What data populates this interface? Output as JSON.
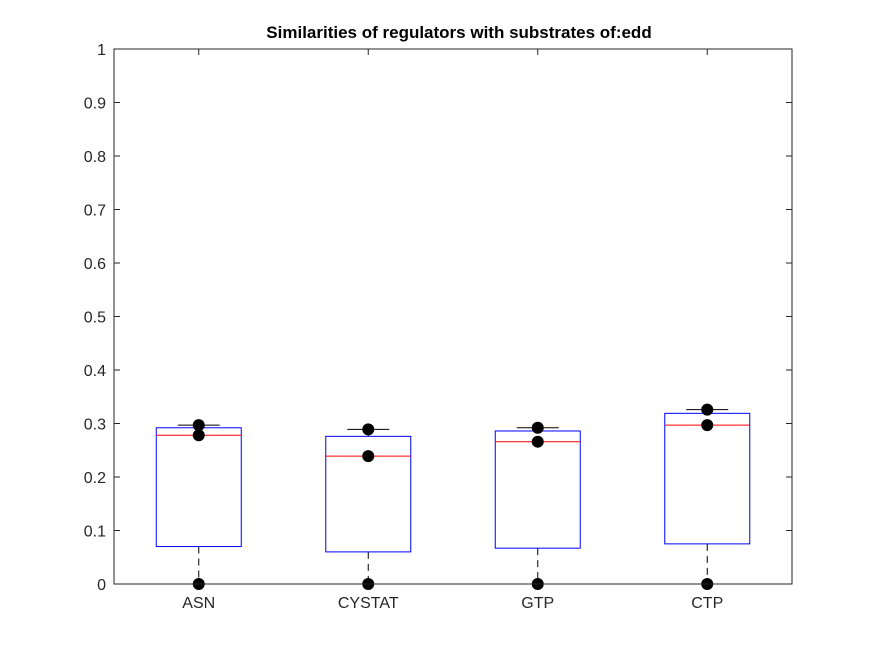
{
  "chart_data": {
    "type": "boxplot",
    "title": "Similarities of regulators with substrates of:edd",
    "xlabel": "",
    "ylabel": "",
    "ylim": [
      0,
      1
    ],
    "yticks": [
      0,
      0.1,
      0.2,
      0.3,
      0.4,
      0.5,
      0.6,
      0.7,
      0.8,
      0.9,
      1
    ],
    "ytick_labels": [
      "0",
      "0.1",
      "0.2",
      "0.3",
      "0.4",
      "0.5",
      "0.6",
      "0.7",
      "0.8",
      "0.9",
      "1"
    ],
    "categories": [
      "ASN",
      "CYSTAT",
      "GTP",
      "CTP"
    ],
    "boxes": [
      {
        "category": "ASN",
        "whisker_low": 0,
        "q1": 0.07,
        "median": 0.278,
        "q3": 0.292,
        "whisker_high": 0.297
      },
      {
        "category": "CYSTAT",
        "whisker_low": 0,
        "q1": 0.06,
        "median": 0.239,
        "q3": 0.276,
        "whisker_high": 0.289
      },
      {
        "category": "GTP",
        "whisker_low": 0,
        "q1": 0.067,
        "median": 0.266,
        "q3": 0.286,
        "whisker_high": 0.292
      },
      {
        "category": "CTP",
        "whisker_low": 0,
        "q1": 0.075,
        "median": 0.297,
        "q3": 0.319,
        "whisker_high": 0.326
      }
    ],
    "points": [
      {
        "category": "ASN",
        "values": [
          0,
          0.278,
          0.297
        ]
      },
      {
        "category": "CYSTAT",
        "values": [
          0,
          0.239,
          0.289
        ]
      },
      {
        "category": "GTP",
        "values": [
          0,
          0.266,
          0.292
        ]
      },
      {
        "category": "CTP",
        "values": [
          0,
          0.297,
          0.326
        ]
      }
    ],
    "colors": {
      "box": "#0000ff",
      "median": "#ff0000",
      "whisker": "#000000",
      "points": "#000000",
      "axes": "#262626"
    },
    "grid": false,
    "legend": "none"
  }
}
